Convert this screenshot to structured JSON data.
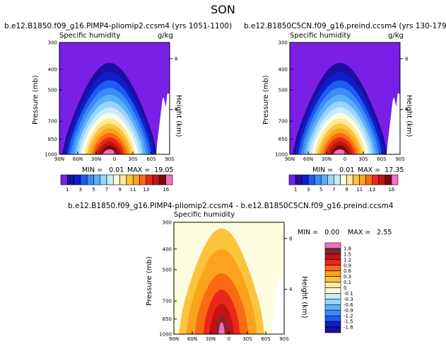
{
  "page": {
    "title": "SON"
  },
  "colors": {
    "levels": [
      "#7a1fe6",
      "#1c0ea0",
      "#0e1ec8",
      "#1e5cf0",
      "#3c8cf8",
      "#5ab0f8",
      "#9ad4fa",
      "#c8ecfc",
      "#fffde0",
      "#fde89a",
      "#fcc43c",
      "#fca21c",
      "#f86a14",
      "#e82818",
      "#c01414",
      "#7a0a0a",
      "#f070c0"
    ],
    "diff_levels": [
      "#7a1fe6",
      "#1c0ea0",
      "#0e1ec8",
      "#1e5cf0",
      "#3c8cf8",
      "#5ab0f8",
      "#9ad4fa",
      "#c8ecfc",
      "#fffde0",
      "#fde8a0",
      "#fcc43c",
      "#fca21c",
      "#f86a14",
      "#e82818",
      "#c01414",
      "#7a2a2a",
      "#f070c0"
    ]
  },
  "chart_data": [
    {
      "type": "heatmap",
      "panel": "pliomip2",
      "title": "b.e12.B1850.f09_g16.PIMP4-pliomip2.ccsm4 (yrs 1051-1100)",
      "left_label": "Specific humidity",
      "right_label": "g/kg",
      "ylabel": "Pressure (mb)",
      "ylabel_right": "Height (km)",
      "x_ticks": [
        "90N",
        "60N",
        "30N",
        "0",
        "30S",
        "60S",
        "90S"
      ],
      "y_ticks": [
        "300",
        "400",
        "500",
        "700",
        "850",
        "1000"
      ],
      "height_ticks": [
        "8",
        "4"
      ],
      "ylim": [
        1000,
        300
      ],
      "xlim": [
        "90N",
        "90S"
      ],
      "min_label": "MIN =",
      "min_value": "0.01",
      "max_label": "MAX =",
      "max_value": "19.05",
      "levels": [
        1,
        2,
        3,
        4,
        5,
        6,
        7,
        8,
        9,
        10,
        11,
        12,
        13,
        14,
        15,
        16
      ],
      "colorbar_labels": [
        "1",
        "3",
        "5",
        "7",
        "9",
        "11",
        "13",
        "16"
      ],
      "peak_value": 19.05,
      "peak_latitude": 8,
      "peak_pressure": 1000
    },
    {
      "type": "heatmap",
      "panel": "preind",
      "title": "b.e12.B1850C5CN.f09_g16.preind.ccsm4 (yrs 130-179)",
      "left_label": "Specific humidity",
      "right_label": "g/kg",
      "ylabel": "Pressure (mb)",
      "ylabel_right": "Height (km)",
      "x_ticks": [
        "90N",
        "60N",
        "30N",
        "0",
        "30S",
        "60S",
        "90S"
      ],
      "y_ticks": [
        "300",
        "400",
        "500",
        "700",
        "850",
        "1000"
      ],
      "height_ticks": [
        "8",
        "4"
      ],
      "ylim": [
        1000,
        300
      ],
      "xlim": [
        "90N",
        "90S"
      ],
      "min_label": "MIN =",
      "min_value": "0.01",
      "max_label": "MAX =",
      "max_value": "17.35",
      "levels": [
        1,
        2,
        3,
        4,
        5,
        6,
        7,
        8,
        9,
        10,
        11,
        12,
        13,
        14,
        15,
        16
      ],
      "colorbar_labels": [
        "1",
        "3",
        "5",
        "7",
        "9",
        "11",
        "13",
        "16"
      ],
      "peak_value": 17.35,
      "peak_latitude": 8,
      "peak_pressure": 1000
    },
    {
      "type": "heatmap",
      "panel": "difference",
      "title": "b.e12.B1850.f09_g16.PIMP4-pliomip2.ccsm4 - b.e12.B1850C5CN.f09_g16.preind.ccsm4",
      "left_label": "Specific humidity",
      "right_label": "",
      "ylabel": "Pressure (mb)",
      "ylabel_right": "Height (km)",
      "x_ticks": [
        "90N",
        "60N",
        "30N",
        "0",
        "30S",
        "60S",
        "90S"
      ],
      "y_ticks": [
        "300",
        "400",
        "500",
        "700",
        "850",
        "1000"
      ],
      "height_ticks": [
        "8",
        "4"
      ],
      "ylim": [
        1000,
        300
      ],
      "xlim": [
        "90N",
        "90S"
      ],
      "min_label": "MIN =",
      "min_value": "0.00",
      "max_label": "MAX =",
      "max_value": "2.55",
      "levels": [
        -1.8,
        -1.5,
        -1.2,
        -0.9,
        -0.6,
        -0.3,
        -0.1,
        0,
        0.1,
        0.3,
        0.6,
        0.9,
        1.2,
        1.5,
        1.8
      ],
      "colorbar_labels": [
        "1.8",
        "1.5",
        "1.2",
        "0.9",
        "0.6",
        "0.3",
        "0.1",
        "0",
        "-0.1",
        "-0.3",
        "-0.6",
        "-0.9",
        "-1.2",
        "-1.5",
        "-1.8"
      ],
      "peak_value": 2.55,
      "peak_latitude": 12,
      "peak_pressure": 900
    }
  ]
}
